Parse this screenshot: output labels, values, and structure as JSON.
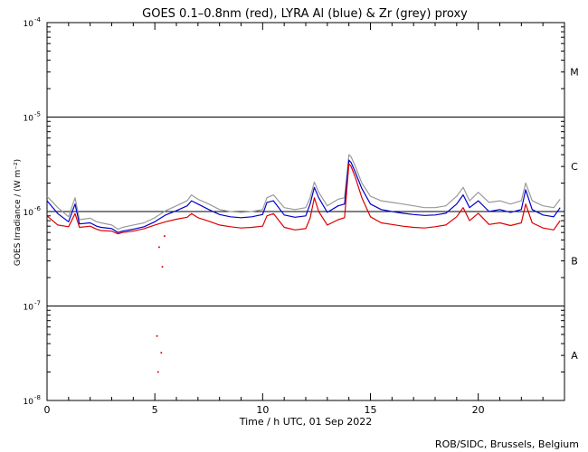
{
  "chart_data": {
    "type": "line",
    "title": "GOES 0.1–0.8nm (red), LYRA Al (blue) & Zr (grey) proxy",
    "xlabel": "Time / h UTC, 01 Sep 2022",
    "ylabel": "GOES Irradiance / (W m⁻²)",
    "credit": "ROB/SIDC, Brussels, Belgium",
    "xlim": [
      0,
      24
    ],
    "ylim": [
      1e-08,
      0.0001
    ],
    "yscale": "log",
    "x_ticks": [
      {
        "value": 0,
        "label": "0"
      },
      {
        "value": 5,
        "label": "5"
      },
      {
        "value": 10,
        "label": "10"
      },
      {
        "value": 15,
        "label": "15"
      },
      {
        "value": 20,
        "label": "20"
      }
    ],
    "y_ticks": [
      {
        "value": 1e-08,
        "base": "10",
        "exp": "-8"
      },
      {
        "value": 1e-07,
        "base": "10",
        "exp": "-7"
      },
      {
        "value": 1e-06,
        "base": "10",
        "exp": "-6"
      },
      {
        "value": 1e-05,
        "base": "10",
        "exp": "-5"
      },
      {
        "value": 0.0001,
        "base": "10",
        "exp": "-4"
      }
    ],
    "flare_lines": [
      1e-07,
      1e-06,
      1e-05
    ],
    "flare_classes": [
      {
        "label": "A",
        "y": 3e-08
      },
      {
        "label": "B",
        "y": 3e-07
      },
      {
        "label": "C",
        "y": 3e-06
      },
      {
        "label": "M",
        "y": 3e-05
      }
    ],
    "series": [
      {
        "color": "#9a9a9a",
        "x": [
          0,
          0.5,
          1,
          1.3,
          1.5,
          2,
          2.3,
          2.5,
          3,
          3.3,
          3.5,
          4,
          4.5,
          5,
          5.5,
          6,
          6.5,
          6.7,
          7,
          7.5,
          8,
          8.5,
          9,
          9.5,
          10,
          10.2,
          10.5,
          11,
          11.5,
          12,
          12.2,
          12.4,
          12.6,
          13,
          13.5,
          13.8,
          14,
          14.1,
          14.3,
          14.6,
          15,
          15.5,
          16,
          16.5,
          17,
          17.5,
          18,
          18.5,
          19,
          19.3,
          19.6,
          20,
          20.5,
          21,
          21.5,
          22,
          22.2,
          22.5,
          23,
          23.5,
          23.8
        ],
        "y": [
          1.45e-06,
          1.1e-06,
          8.8e-07,
          1.4e-06,
          8.2e-07,
          8.5e-07,
          7.8e-07,
          7.6e-07,
          7.2e-07,
          6.5e-07,
          6.8e-07,
          7.2e-07,
          7.6e-07,
          8.6e-07,
          1.02e-06,
          1.15e-06,
          1.3e-06,
          1.5e-06,
          1.35e-06,
          1.2e-06,
          1.05e-06,
          1e-06,
          9.8e-07,
          1e-06,
          1.05e-06,
          1.4e-06,
          1.5e-06,
          1.1e-06,
          1.05e-06,
          1.1e-06,
          1.4e-06,
          2.05e-06,
          1.6e-06,
          1.15e-06,
          1.35e-06,
          1.4e-06,
          4e-06,
          3.8e-06,
          3e-06,
          2e-06,
          1.45e-06,
          1.3e-06,
          1.25e-06,
          1.2e-06,
          1.15e-06,
          1.1e-06,
          1.1e-06,
          1.15e-06,
          1.45e-06,
          1.8e-06,
          1.3e-06,
          1.6e-06,
          1.25e-06,
          1.3e-06,
          1.2e-06,
          1.3e-06,
          2e-06,
          1.3e-06,
          1.15e-06,
          1.1e-06,
          1.35e-06
        ]
      },
      {
        "color": "#0000cc",
        "x": [
          0,
          0.5,
          1,
          1.3,
          1.5,
          2,
          2.3,
          2.5,
          3,
          3.3,
          3.5,
          4,
          4.5,
          5,
          5.5,
          6,
          6.5,
          6.7,
          7,
          7.5,
          8,
          8.5,
          9,
          9.5,
          10,
          10.2,
          10.5,
          11,
          11.5,
          12,
          12.2,
          12.4,
          12.6,
          13,
          13.5,
          13.8,
          14,
          14.1,
          14.3,
          14.6,
          15,
          15.5,
          16,
          16.5,
          17,
          17.5,
          18,
          18.5,
          19,
          19.3,
          19.6,
          20,
          20.5,
          21,
          21.5,
          22,
          22.2,
          22.5,
          23,
          23.5,
          23.8
        ],
        "y": [
          1.3e-06,
          9.5e-07,
          7.8e-07,
          1.2e-06,
          7.4e-07,
          7.6e-07,
          7e-07,
          6.8e-07,
          6.6e-07,
          6e-07,
          6.2e-07,
          6.5e-07,
          6.9e-07,
          7.8e-07,
          9.2e-07,
          1.02e-06,
          1.15e-06,
          1.3e-06,
          1.2e-06,
          1.05e-06,
          9.3e-07,
          8.8e-07,
          8.6e-07,
          8.8e-07,
          9.3e-07,
          1.25e-06,
          1.3e-06,
          9.2e-07,
          8.7e-07,
          9e-07,
          1.2e-06,
          1.8e-06,
          1.4e-06,
          9.8e-07,
          1.15e-06,
          1.2e-06,
          3.5e-06,
          3.3e-06,
          2.6e-06,
          1.75e-06,
          1.2e-06,
          1.05e-06,
          1e-06,
          9.6e-07,
          9.3e-07,
          9.1e-07,
          9.2e-07,
          9.6e-07,
          1.2e-06,
          1.5e-06,
          1.1e-06,
          1.3e-06,
          1e-06,
          1.05e-06,
          9.8e-07,
          1.05e-06,
          1.7e-06,
          1.05e-06,
          9.2e-07,
          8.8e-07,
          1.1e-06
        ]
      },
      {
        "color": "#dd0000",
        "x": [
          0,
          0.5,
          1,
          1.3,
          1.5,
          2,
          2.3,
          2.5,
          3,
          3.3,
          3.5,
          4,
          4.5,
          5,
          5.5,
          6,
          6.5,
          6.7,
          7,
          7.5,
          8,
          8.5,
          9,
          9.5,
          10,
          10.2,
          10.5,
          11,
          11.5,
          12,
          12.2,
          12.4,
          12.6,
          13,
          13.5,
          13.8,
          14,
          14.1,
          14.3,
          14.6,
          15,
          15.5,
          16,
          16.5,
          17,
          17.5,
          18,
          18.5,
          19,
          19.3,
          19.6,
          20,
          20.5,
          21,
          21.5,
          22,
          22.2,
          22.5,
          23,
          23.5,
          23.8
        ],
        "y": [
          9e-07,
          7.2e-07,
          6.9e-07,
          9.5e-07,
          6.8e-07,
          7e-07,
          6.5e-07,
          6.3e-07,
          6.2e-07,
          5.8e-07,
          6e-07,
          6.2e-07,
          6.6e-07,
          7.2e-07,
          7.8e-07,
          8.3e-07,
          8.7e-07,
          9.5e-07,
          8.6e-07,
          7.9e-07,
          7.2e-07,
          6.9e-07,
          6.7e-07,
          6.8e-07,
          7e-07,
          9e-07,
          9.5e-07,
          6.8e-07,
          6.4e-07,
          6.6e-07,
          8.5e-07,
          1.4e-06,
          1e-06,
          7.2e-07,
          8.2e-07,
          8.6e-07,
          3.2e-06,
          3e-06,
          2.3e-06,
          1.4e-06,
          8.8e-07,
          7.6e-07,
          7.3e-07,
          7e-07,
          6.8e-07,
          6.7e-07,
          6.9e-07,
          7.2e-07,
          8.8e-07,
          1.1e-06,
          8e-07,
          9.6e-07,
          7.3e-07,
          7.6e-07,
          7.1e-07,
          7.6e-07,
          1.2e-06,
          7.6e-07,
          6.7e-07,
          6.4e-07,
          8e-07
        ]
      }
    ],
    "outliers": [
      {
        "x": 5.1,
        "y": 4.8e-08,
        "color": "#dd0000"
      },
      {
        "x": 5.3,
        "y": 3.2e-08,
        "color": "#dd0000"
      },
      {
        "x": 5.15,
        "y": 2e-08,
        "color": "#dd0000"
      },
      {
        "x": 5.35,
        "y": 2.6e-07,
        "color": "#dd0000"
      },
      {
        "x": 5.2,
        "y": 4.2e-07,
        "color": "#dd0000"
      },
      {
        "x": 5.45,
        "y": 5.5e-07,
        "color": "#dd0000"
      }
    ]
  }
}
